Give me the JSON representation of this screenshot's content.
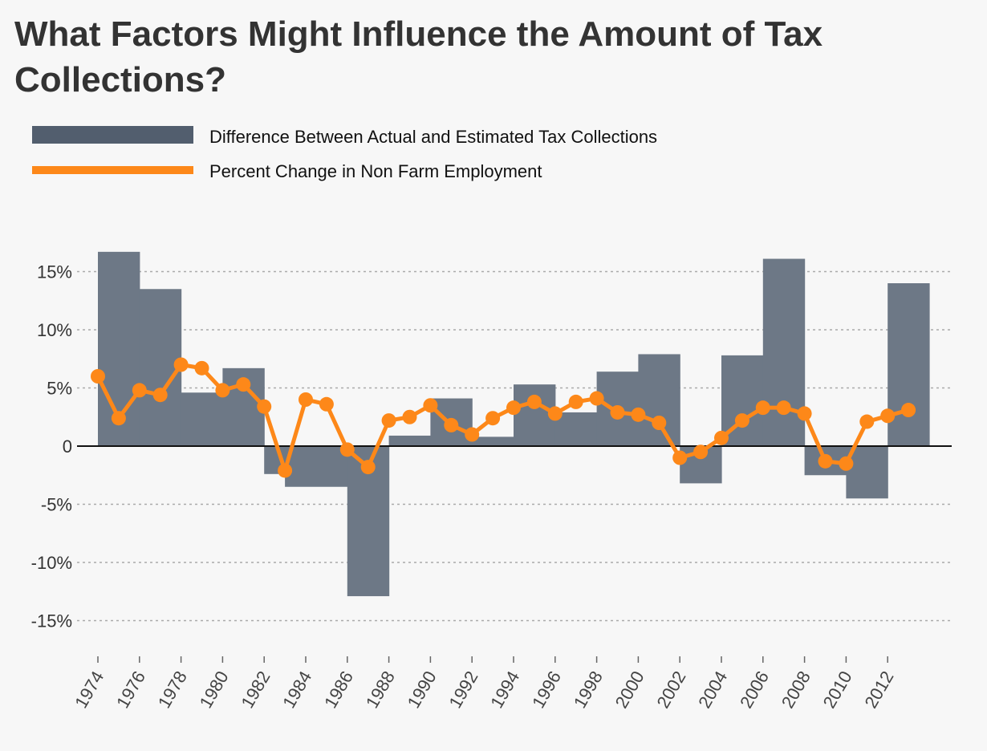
{
  "title": "What Factors Might Influence the Amount of Tax Collections?",
  "chart_data": {
    "type": "bar+line",
    "title": "What Factors Might Influence the Amount of Tax Collections?",
    "legend": {
      "placement": "top-left",
      "entries": [
        {
          "label": "Difference Between Actual and Estimated Tax Collections",
          "color": "#525e6e",
          "kind": "bar"
        },
        {
          "label": "Percent Change in Non Farm Employment",
          "color": "#fd8819",
          "kind": "line"
        }
      ]
    },
    "ylim": [
      -18,
      19
    ],
    "y_ticks": [
      15,
      10,
      5,
      0,
      -5,
      -10,
      -15
    ],
    "y_tick_labels": [
      "15%",
      "10%",
      "5%",
      "0",
      "-5%",
      "-10%",
      "-15%"
    ],
    "x_tick_labels": [
      "1974",
      "1976",
      "1978",
      "1980",
      "1982",
      "1984",
      "1986",
      "1988",
      "1990",
      "1992",
      "1994",
      "1996",
      "1998",
      "2000",
      "2002",
      "2004",
      "2006",
      "2008",
      "2010",
      "2012"
    ],
    "grid": "horizontal dotted",
    "bars": {
      "name": "Difference Between Actual and Estimated Tax Collections",
      "color": "#6d7886",
      "segments": [
        {
          "start": 1974,
          "end": 1976,
          "value": 16.7
        },
        {
          "start": 1976,
          "end": 1978,
          "value": 13.5
        },
        {
          "start": 1978,
          "end": 1980,
          "value": 4.6
        },
        {
          "start": 1980,
          "end": 1982,
          "value": 6.7
        },
        {
          "start": 1982,
          "end": 1983,
          "value": -2.4
        },
        {
          "start": 1983,
          "end": 1986,
          "value": -3.5
        },
        {
          "start": 1986,
          "end": 1988,
          "value": -12.9
        },
        {
          "start": 1988,
          "end": 1990,
          "value": 0.9
        },
        {
          "start": 1990,
          "end": 1992,
          "value": 4.1
        },
        {
          "start": 1992,
          "end": 1994,
          "value": 0.8
        },
        {
          "start": 1994,
          "end": 1996,
          "value": 5.3
        },
        {
          "start": 1996,
          "end": 1998,
          "value": 2.9
        },
        {
          "start": 1998,
          "end": 2000,
          "value": 6.4
        },
        {
          "start": 2000,
          "end": 2002,
          "value": 7.9
        },
        {
          "start": 2002,
          "end": 2004,
          "value": -3.2
        },
        {
          "start": 2004,
          "end": 2006,
          "value": 7.8
        },
        {
          "start": 2006,
          "end": 2008,
          "value": 16.1
        },
        {
          "start": 2008,
          "end": 2010,
          "value": -2.5
        },
        {
          "start": 2010,
          "end": 2012,
          "value": -4.5
        },
        {
          "start": 2012,
          "end": 2014,
          "value": 14.0
        }
      ]
    },
    "line": {
      "name": "Percent Change in Non Farm Employment",
      "color": "#fd8819",
      "x": [
        1974,
        1975,
        1976,
        1977,
        1978,
        1979,
        1980,
        1981,
        1982,
        1983,
        1984,
        1985,
        1986,
        1987,
        1988,
        1989,
        1990,
        1991,
        1992,
        1993,
        1994,
        1995,
        1996,
        1997,
        1998,
        1999,
        2000,
        2001,
        2002,
        2003,
        2004,
        2005,
        2006,
        2007,
        2008,
        2009,
        2010,
        2011,
        2012,
        2013
      ],
      "y": [
        6.0,
        2.4,
        4.8,
        4.4,
        7.0,
        6.7,
        4.8,
        5.3,
        3.4,
        -2.1,
        4.0,
        3.6,
        -0.3,
        -1.8,
        2.2,
        2.5,
        3.5,
        1.8,
        1.0,
        2.4,
        3.3,
        3.8,
        2.8,
        3.8,
        4.1,
        2.9,
        2.7,
        2.0,
        -1.0,
        -0.5,
        0.7,
        2.2,
        3.3,
        3.3,
        2.8,
        -1.3,
        -1.5,
        2.1,
        2.6,
        3.1
      ]
    }
  }
}
